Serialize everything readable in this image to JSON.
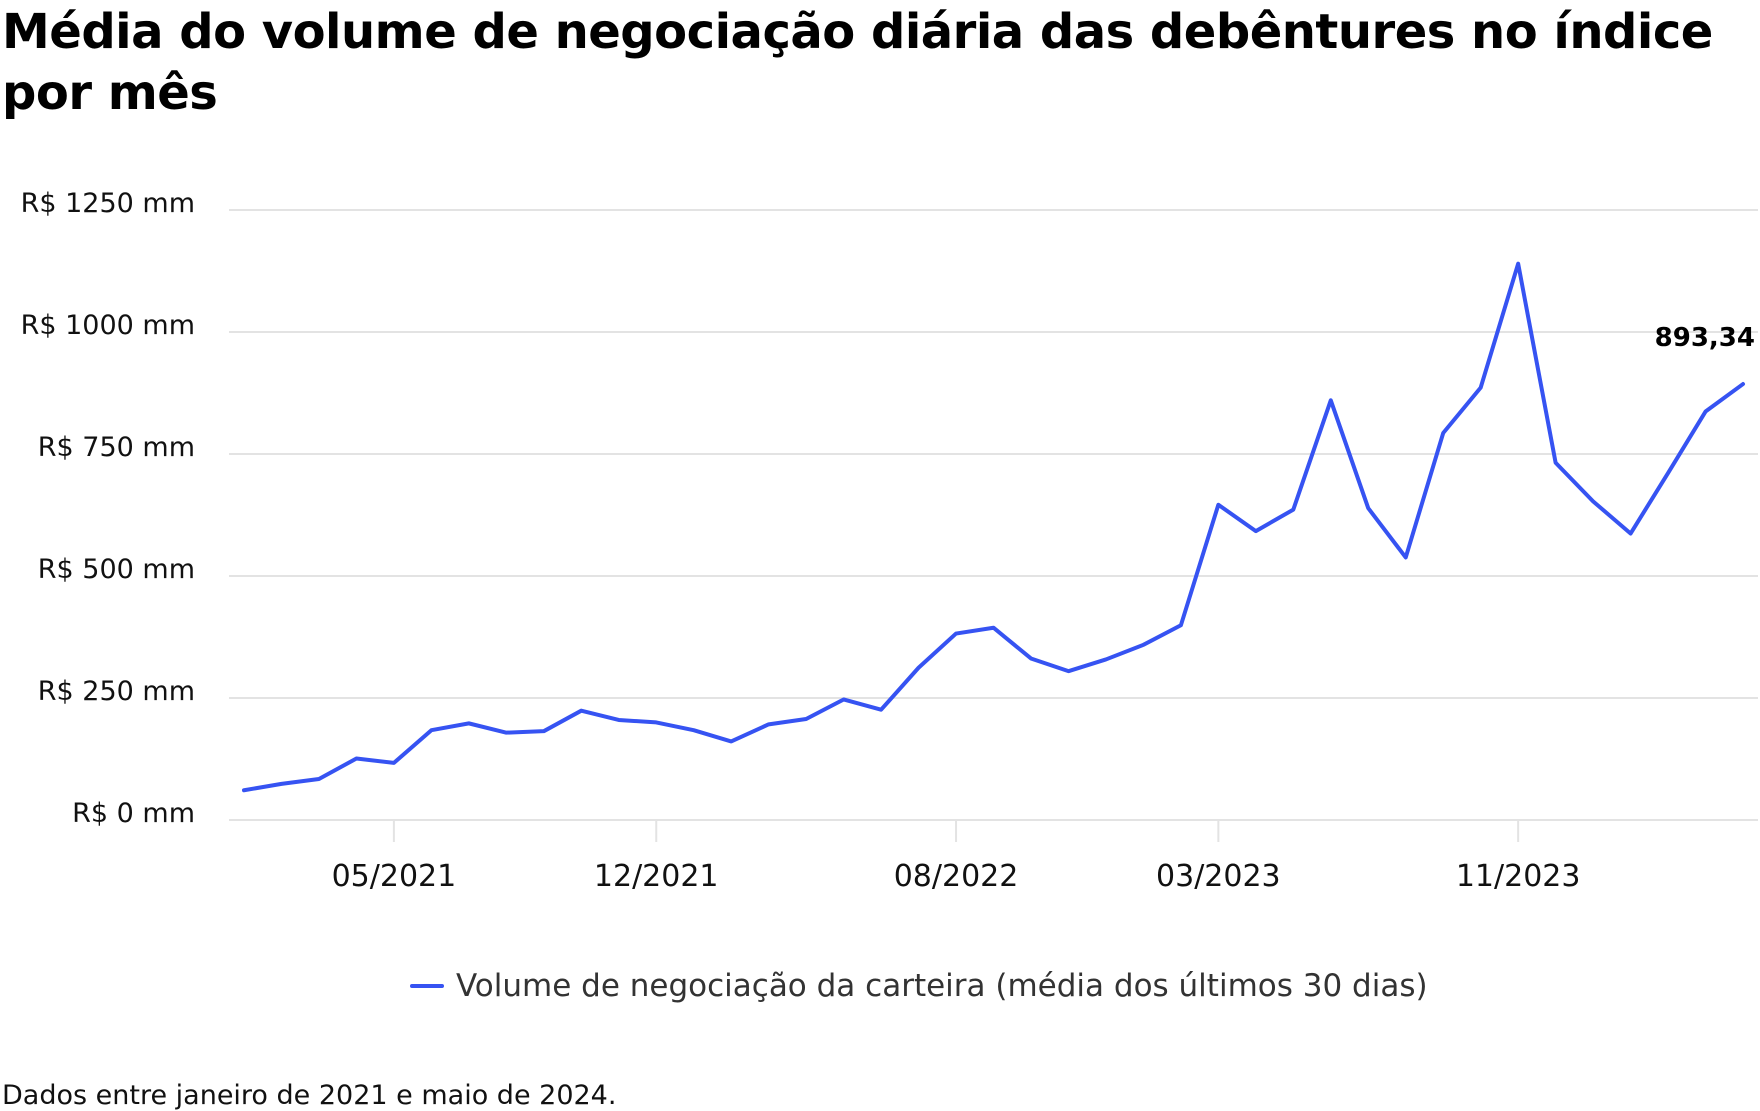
{
  "chart_data": {
    "type": "line",
    "title": "Média do volume de negociação diária das debêntures no índice por mês",
    "xlabel": "",
    "ylabel": "",
    "ylim": [
      0,
      1250
    ],
    "yticks": [
      0,
      250,
      500,
      750,
      1000,
      1250
    ],
    "ytick_labels": [
      "R$ 0 mm",
      "R$ 250 mm",
      "R$ 500 mm",
      "R$ 750 mm",
      "R$ 1000 mm",
      "R$ 1250 mm"
    ],
    "x": [
      "01/2021",
      "02/2021",
      "03/2021",
      "04/2021",
      "05/2021",
      "06/2021",
      "07/2021",
      "08/2021",
      "09/2021",
      "10/2021",
      "11/2021",
      "12/2021",
      "01/2022",
      "02/2022",
      "03/2022",
      "04/2022",
      "05/2022",
      "06/2022",
      "07/2022",
      "08/2022",
      "09/2022",
      "10/2022",
      "11/2022",
      "12/2022",
      "01/2023",
      "02/2023",
      "03/2023",
      "04/2023",
      "05/2023",
      "06/2023",
      "07/2023",
      "08/2023",
      "09/2023",
      "10/2023",
      "11/2023",
      "12/2023",
      "01/2024",
      "02/2024",
      "03/2024",
      "04/2024",
      "05/2024"
    ],
    "xtick_labels": [
      "05/2021",
      "12/2021",
      "08/2022",
      "03/2023",
      "11/2023"
    ],
    "grid": true,
    "legend_position": "bottom-center",
    "series": [
      {
        "name": "Volume de negociação da carteira (média dos últimos 30 dias)",
        "color": "#3653f2",
        "values": [
          61,
          74,
          84,
          126,
          117,
          184,
          198,
          179,
          182,
          224,
          205,
          200,
          184,
          161,
          196,
          207,
          247,
          226,
          312,
          382,
          394,
          331,
          305,
          329,
          359,
          399,
          646,
          592,
          636,
          860,
          639,
          538,
          793,
          886,
          1140,
          732,
          653,
          587,
          711,
          837,
          893.34
        ]
      }
    ],
    "annotations": [
      {
        "label": "893,34",
        "at": "05/2024"
      }
    ]
  },
  "footer": "Dados entre janeiro de 2021 e maio de 2024."
}
